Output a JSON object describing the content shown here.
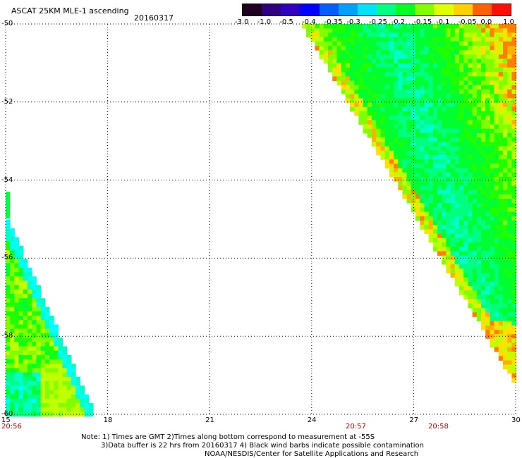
{
  "header": {
    "title": "ASCAT 25KM MLE-1 ascending",
    "date": "20160317"
  },
  "colorbar": {
    "labels": [
      "-3.0",
      "-1.0",
      "-0.5",
      "-0.4",
      "-0.35",
      "-0.3",
      "-0.25",
      "-0.2",
      "-0.15",
      "-0.1",
      "-0.05",
      "0.0",
      "1.0"
    ],
    "colors": [
      "#200020",
      "#300080",
      "#3000c0",
      "#0000ff",
      "#0060ff",
      "#00a0ff",
      "#00e0ff",
      "#00ff80",
      "#00ff20",
      "#80ff00",
      "#e0ff00",
      "#ffd000",
      "#ff6000",
      "#ff1000"
    ]
  },
  "axes": {
    "y_labels": [
      "-50",
      "-52",
      "-54",
      "-56",
      "-58",
      "-60"
    ],
    "x_labels": [
      "15",
      "18",
      "21",
      "24",
      "27",
      "30"
    ],
    "x_range": [
      15,
      30
    ],
    "y_range": [
      -60,
      -50
    ]
  },
  "times": [
    "20:56",
    "20:57",
    "20:58"
  ],
  "notes": {
    "line1": "Note: 1) Times are GMT 2)Times along bottom correspond to measurement at -55S",
    "line2": "3)Data buffer is 22 hrs from 20160317 4) Black wind barbs indicate possible contamination",
    "line3": "NOAA/NESDIS/Center for Satellite Applications and Research"
  },
  "chart_data": {
    "type": "heatmap",
    "title": "ASCAT 25KM MLE-1 ascending",
    "date": "20160317",
    "x_range": [
      15,
      30
    ],
    "y_range": [
      -60,
      -50
    ],
    "swaths": [
      {
        "name": "left",
        "lon_start": 15.0,
        "lon_end": 17.5,
        "lat_top": -54.8,
        "lat_bottom": -60,
        "dominant": "-0.15",
        "note": "cyan near bottom-left, yellow-green interior"
      },
      {
        "name": "right",
        "lon_start": 23.8,
        "lon_end": 30,
        "lat_top": -50,
        "lat_bottom": -59.0,
        "dominant": "-0.2",
        "note": "cyan band in upper middle, orange/yellow edge pixels along diagonal"
      }
    ]
  }
}
